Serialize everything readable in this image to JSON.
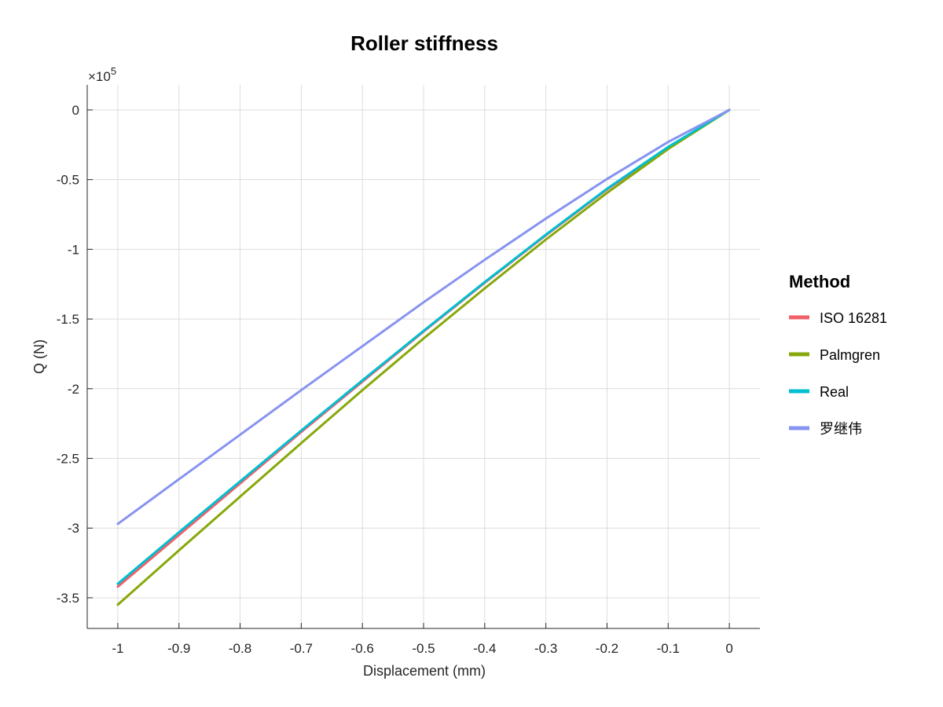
{
  "chart_data": {
    "type": "line",
    "title": "Roller stiffness",
    "xlabel": "Displacement (mm)",
    "ylabel": "Q (N)",
    "y_exponent_label": "×10",
    "y_exponent_power": "5",
    "y_scale": 100000,
    "xlim": [
      -1.05,
      0.05
    ],
    "ylim": [
      -372000,
      18000
    ],
    "x_ticks": [
      -1,
      -0.9,
      -0.8,
      -0.7,
      -0.6,
      -0.5,
      -0.4,
      -0.3,
      -0.2,
      -0.1,
      0
    ],
    "x_tick_labels": [
      "-1",
      "-0.9",
      "-0.8",
      "-0.7",
      "-0.6",
      "-0.5",
      "-0.4",
      "-0.3",
      "-0.2",
      "-0.1",
      "0"
    ],
    "y_ticks": [
      0,
      -50000,
      -100000,
      -150000,
      -200000,
      -250000,
      -300000,
      -350000
    ],
    "y_tick_labels": [
      "0",
      "-0.5",
      "-1",
      "-1.5",
      "-2",
      "-2.5",
      "-3",
      "-3.5"
    ],
    "grid": true,
    "legend_title": "Method",
    "legend_position": "right",
    "x": [
      -1,
      -0.9,
      -0.8,
      -0.7,
      -0.6,
      -0.5,
      -0.4,
      -0.3,
      -0.2,
      -0.1,
      0
    ],
    "series": [
      {
        "name": "ISO 16281",
        "color": "#f0606a",
        "values": [
          -342000,
          -305000,
          -268000,
          -231000,
          -195000,
          -159000,
          -124000,
          -90000,
          -57000,
          -27000,
          0
        ]
      },
      {
        "name": "Palmgren",
        "color": "#87a80a",
        "values": [
          -355000,
          -316000,
          -277500,
          -239000,
          -201000,
          -164000,
          -128000,
          -93000,
          -59500,
          -28000,
          0
        ]
      },
      {
        "name": "Real",
        "color": "#00bfd0",
        "values": [
          -340000,
          -303000,
          -266500,
          -230000,
          -194000,
          -158500,
          -123500,
          -89500,
          -56500,
          -26500,
          0
        ]
      },
      {
        "name": "罗继伟",
        "color": "#8793f0",
        "values": [
          -297000,
          -265000,
          -233000,
          -201000,
          -169500,
          -138000,
          -107500,
          -78000,
          -49500,
          -23000,
          0
        ]
      }
    ]
  }
}
